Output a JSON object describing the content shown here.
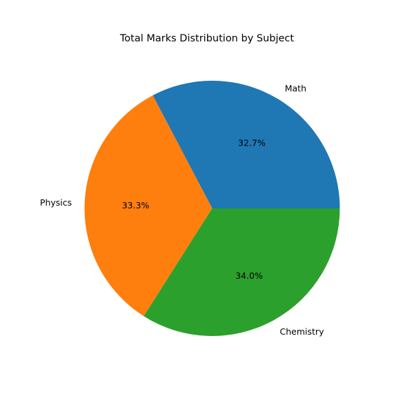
{
  "chart_data": {
    "type": "pie",
    "title": "Total Marks Distribution by Subject",
    "labels": [
      "Math",
      "Physics",
      "Chemistry"
    ],
    "values": [
      32.7,
      33.3,
      34.0
    ],
    "percent_labels": [
      "32.7%",
      "33.3%",
      "34.0%"
    ],
    "colors": [
      "#1f77b4",
      "#ff7f0e",
      "#2ca02c"
    ],
    "start_angle_deg": 0,
    "direction": "counterclockwise",
    "legend": "none"
  }
}
